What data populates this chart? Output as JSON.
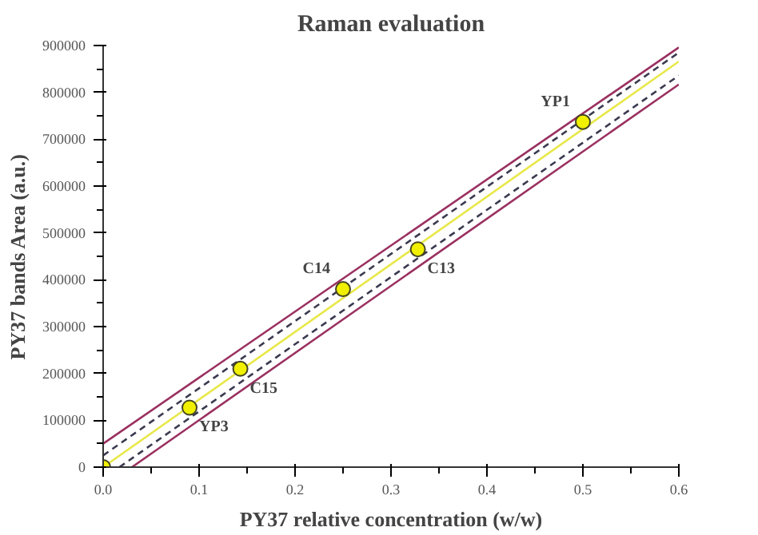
{
  "chart_data": {
    "type": "scatter",
    "title": "Raman evaluation",
    "xlabel": "PY37 relative concentration (w/w)",
    "ylabel": "PY37 bands Area (a.u.)",
    "xlim": [
      0,
      0.6
    ],
    "ylim": [
      0,
      900000
    ],
    "xticks": [
      {
        "value": 0,
        "label": "0.0"
      },
      0.1,
      0.2,
      0.3,
      0.4,
      0.5,
      0.6
    ],
    "yticks": [
      0,
      100000,
      200000,
      300000,
      400000,
      500000,
      600000,
      700000,
      800000,
      900000
    ],
    "grid": false,
    "x": [
      0,
      0.09,
      0.143,
      0.25,
      0.328,
      0.5
    ],
    "series": [
      {
        "marker": "circle",
        "color": "#f0f000",
        "values": [
          0,
          127000,
          210000,
          380000,
          465000,
          737000
        ]
      },
      {
        "type": "line",
        "color": "#e8e84a",
        "x": [
          0,
          0.6
        ],
        "values": [
          0,
          866000
        ],
        "line_style": "solid"
      },
      {
        "type": "line",
        "color": "#3a3a50",
        "x": [
          0,
          0.6
        ],
        "values": [
          25000,
          885000
        ],
        "line_style": "dashed"
      },
      {
        "type": "line",
        "color": "#3a3a50",
        "x": [
          0.017,
          0.6
        ],
        "values": [
          0,
          836000
        ],
        "line_style": "dashed"
      },
      {
        "type": "line",
        "color": "#9a3060",
        "x": [
          0,
          0.6
        ],
        "values": [
          50000,
          896000
        ],
        "line_style": "solid"
      },
      {
        "type": "line",
        "color": "#9a3060",
        "x": [
          0.03,
          0.6
        ],
        "values": [
          0,
          817000
        ],
        "line_style": "solid"
      }
    ],
    "annotations": [
      {
        "text": "YP3",
        "x": 0.09,
        "y": 127000
      },
      {
        "text": "C14",
        "x": 0.25,
        "y": 380000
      },
      {
        "text": "C15",
        "x": 0.143,
        "y": 210000
      },
      {
        "text": "YP1",
        "x": 0.5,
        "y": 737000
      },
      {
        "text": "C13",
        "x": 0.328,
        "y": 465000
      }
    ]
  }
}
